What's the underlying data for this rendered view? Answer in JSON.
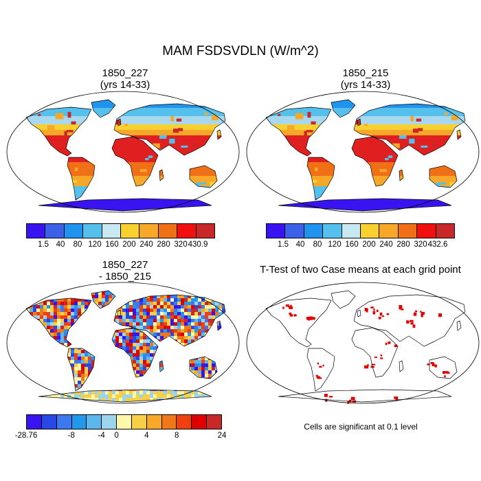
{
  "main_title": "MAM FSDSVDLN (W/m^2)",
  "panels": {
    "case1": {
      "title_line1": "1850_227",
      "title_line2": "(yrs 14-33)"
    },
    "case2": {
      "title_line1": "1850_215",
      "title_line2": "(yrs 14-33)"
    },
    "diff": {
      "title_line1": "1850_227",
      "title_line2": "- 1850_215"
    },
    "ttest": {
      "title": "T-Test of two Case means at each grid point",
      "note": "Cells are significant at 0.1 level"
    }
  },
  "colorbars": {
    "case1": {
      "colors": [
        "#3a14f0",
        "#3d60e8",
        "#1f93ee",
        "#56c0ec",
        "#c8e8f4",
        "#f8d030",
        "#f8a828",
        "#f07018",
        "#f01010",
        "#c82828"
      ],
      "labels": [
        "1.5",
        "40",
        "80",
        "120",
        "160",
        "200",
        "240",
        "280",
        "320",
        "430.9"
      ]
    },
    "case2": {
      "colors": [
        "#3a14f0",
        "#3d60e8",
        "#1f93ee",
        "#56c0ec",
        "#c8e8f4",
        "#f8d030",
        "#f8a828",
        "#f07018",
        "#f01010",
        "#c82828"
      ],
      "labels": [
        "1.5",
        "40",
        "80",
        "120",
        "160",
        "200",
        "240",
        "280",
        "320",
        "432.6"
      ]
    },
    "diff": {
      "colors": [
        "#3a14f0",
        "#2848e8",
        "#3c78f0",
        "#2298ec",
        "#5ab8ec",
        "#9cd4ec",
        "#fff8a8",
        "#f8d048",
        "#f8a828",
        "#f07818",
        "#f04010",
        "#e00000",
        "#c82828"
      ],
      "labels": [
        "-28.76",
        "-8",
        "-4",
        "0",
        "4",
        "8",
        "24"
      ]
    }
  },
  "colors": {
    "ocean": "#ffffff",
    "ice": "#3018e8",
    "hot": "#e02424",
    "warm": "#f8a020",
    "cool": "#7cc8f0",
    "significant": "#e00000"
  }
}
